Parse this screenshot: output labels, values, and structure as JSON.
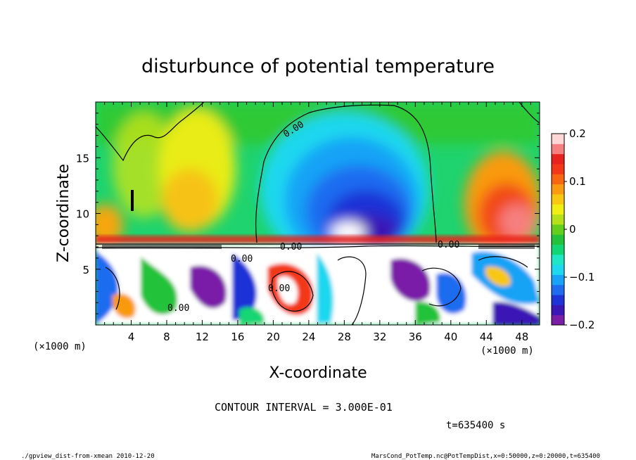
{
  "chart_data": {
    "type": "heatmap",
    "title": "disturbunce of potential temperature",
    "xlabel": "X-coordinate",
    "ylabel": "Z-coordinate",
    "x_unit_label": "(×1000 m)",
    "y_unit_label": "(×1000 m)",
    "xlim": [
      0,
      50
    ],
    "ylim": [
      0,
      20
    ],
    "x_ticks": [
      "4",
      "8",
      "12",
      "16",
      "20",
      "24",
      "28",
      "32",
      "36",
      "40",
      "44",
      "48"
    ],
    "y_ticks": [
      "5",
      "10",
      "15"
    ],
    "colorbar": {
      "range": [
        -0.2,
        0.2
      ],
      "tick_labels": [
        "0.2",
        "0.1",
        "0",
        "−0.1",
        "−0.2"
      ],
      "colors": [
        "#7a1ea8",
        "#3b17b5",
        "#1f33d6",
        "#1f6cf0",
        "#19a3f6",
        "#1ed8ef",
        "#1fe6c4",
        "#12d673",
        "#22c23a",
        "#63cf1c",
        "#b6e019",
        "#f0ee13",
        "#f8c712",
        "#f99a10",
        "#f86611",
        "#f23818",
        "#e8231f",
        "#f67f7f",
        "#ffd6d6"
      ]
    },
    "contour_labels": [
      "0.00",
      "0.00",
      "0.00",
      "0.00",
      "0.00",
      "0.00"
    ],
    "contour_interval_text": "CONTOUR INTERVAL = 3.000E-01",
    "time_text": "t=635400 s"
  },
  "footer": {
    "left": "./gpview_dist-from-xmean  2010-12-20",
    "right": "MarsCond_PotTemp.nc@PotTempDist,x=0:50000,z=0:20000,t=635400"
  }
}
